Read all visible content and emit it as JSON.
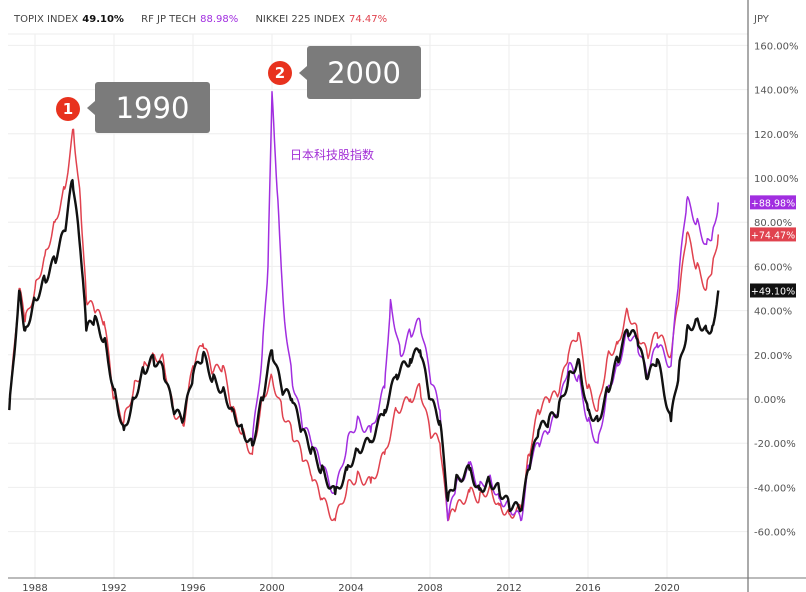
{
  "legend": [
    {
      "label": "TOPIX INDEX",
      "value": "49.10%",
      "color": "#111111"
    },
    {
      "label": "RF JP TECH",
      "value": "88.98%",
      "color": "#a12ee0"
    },
    {
      "label": "NIKKEI 225 INDEX",
      "value": "74.47%",
      "color": "#e0424e"
    }
  ],
  "annotations": {
    "marker1": "1",
    "callout1": "1990",
    "marker2": "2",
    "callout2": "2000",
    "tech_label": "日本科技股指数"
  },
  "chart_data": {
    "type": "line",
    "currency_label": "JPY",
    "x_ticks": [
      "1988",
      "1992",
      "1996",
      "2000",
      "2004",
      "2008",
      "2012",
      "2016",
      "2020"
    ],
    "y_ticks": [
      "160.00%",
      "140.00%",
      "120.00%",
      "100.00%",
      "80.00%",
      "60.00%",
      "40.00%",
      "20.00%",
      "0.00%",
      "-20.00%",
      "-40.00%",
      "-60.00%"
    ],
    "y_range": [
      -75,
      170
    ],
    "x_range": [
      1986.7,
      2022.6
    ],
    "grid": true,
    "legend_position": "top-left",
    "series": [
      {
        "name": "NIKKEI 225 INDEX",
        "color": "#e0424e",
        "last_label": "+74.47%",
        "x": [
          1986.7,
          1987.2,
          1987.5,
          1988,
          1988.5,
          1989,
          1989.5,
          1989.95,
          1990.3,
          1990.6,
          1991,
          1991.5,
          1992,
          1992.5,
          1993,
          1993.5,
          1994,
          1994.5,
          1995,
          1995.5,
          1996,
          1996.5,
          1997,
          1997.5,
          1998,
          1998.5,
          1999,
          1999.5,
          2000,
          2000.5,
          2001,
          2001.5,
          2002,
          2002.5,
          2003.2,
          2003.8,
          2004.3,
          2005,
          2005.7,
          2006.3,
          2007,
          2007.5,
          2008,
          2008.5,
          2008.9,
          2009.3,
          2010,
          2010.5,
          2011,
          2011.5,
          2012,
          2012.6,
          2013,
          2013.5,
          2014,
          2014.5,
          2015,
          2015.5,
          2016,
          2016.5,
          2017,
          2017.5,
          2018,
          2018.5,
          2019,
          2019.5,
          2020.2,
          2020.6,
          2021,
          2021.5,
          2022,
          2022.3,
          2022.6
        ],
        "y": [
          -5,
          50,
          35,
          50,
          65,
          80,
          95,
          122,
          90,
          45,
          40,
          35,
          0,
          -10,
          5,
          15,
          20,
          18,
          -5,
          -12,
          15,
          25,
          12,
          15,
          -5,
          -15,
          -25,
          0,
          10,
          -5,
          -15,
          -25,
          -35,
          -45,
          -55,
          -40,
          -35,
          -38,
          -25,
          -5,
          0,
          5,
          -15,
          -20,
          -55,
          -50,
          -42,
          -45,
          -40,
          -48,
          -52,
          -50,
          -25,
          -5,
          0,
          2,
          20,
          30,
          5,
          -5,
          20,
          25,
          40,
          30,
          20,
          30,
          20,
          45,
          75,
          60,
          50,
          60,
          74.47
        ]
      },
      {
        "name": "RF JP TECH",
        "color": "#a12ee0",
        "last_label": "+88.98%",
        "x": [
          1999,
          1999.5,
          1999.8,
          2000,
          2000.3,
          2000.6,
          2001,
          2001.5,
          2002,
          2002.5,
          2003.2,
          2003.8,
          2004.3,
          2005,
          2005.7,
          2006,
          2006.5,
          2007,
          2007.5,
          2008,
          2008.5,
          2008.9,
          2009.3,
          2010,
          2010.5,
          2011,
          2011.5,
          2012,
          2012.6,
          2013,
          2013.5,
          2014,
          2014.5,
          2015,
          2015.5,
          2016,
          2016.5,
          2017,
          2017.5,
          2018,
          2018.5,
          2019,
          2019.5,
          2020.2,
          2020.6,
          2021,
          2021.5,
          2022,
          2022.3,
          2022.6
        ],
        "y": [
          -20,
          20,
          60,
          139,
          90,
          40,
          10,
          -10,
          -20,
          -30,
          -43,
          -20,
          -10,
          -15,
          5,
          45,
          20,
          30,
          35,
          10,
          -5,
          -55,
          -40,
          -30,
          -40,
          -35,
          -45,
          -48,
          -55,
          -30,
          -20,
          -15,
          -5,
          15,
          10,
          -10,
          -20,
          5,
          15,
          30,
          25,
          10,
          25,
          15,
          55,
          90,
          80,
          70,
          75,
          88.98
        ]
      },
      {
        "name": "TOPIX INDEX",
        "color": "#111111",
        "last_label": "+49.10%",
        "x": [
          1986.7,
          1987.2,
          1987.5,
          1988,
          1988.5,
          1989,
          1989.5,
          1989.9,
          1990.3,
          1990.6,
          1991,
          1991.5,
          1992,
          1992.5,
          1993,
          1993.5,
          1994,
          1994.5,
          1995,
          1995.5,
          1996,
          1996.5,
          1997,
          1997.5,
          1998,
          1998.5,
          1999,
          1999.5,
          2000,
          2000.5,
          2001,
          2001.5,
          2002,
          2002.5,
          2003.2,
          2003.8,
          2004.3,
          2005,
          2005.7,
          2006.3,
          2007,
          2007.5,
          2008,
          2008.5,
          2008.9,
          2009.3,
          2010,
          2010.5,
          2011,
          2011.5,
          2012,
          2012.6,
          2013,
          2013.5,
          2014,
          2014.5,
          2015,
          2015.5,
          2016,
          2016.5,
          2017,
          2017.5,
          2018,
          2018.5,
          2019,
          2019.5,
          2020.2,
          2020.6,
          2021,
          2021.5,
          2022,
          2022.3,
          2022.6
        ],
        "y": [
          -5,
          49,
          31,
          45,
          54,
          63,
          76,
          99,
          67,
          31,
          36,
          27,
          4,
          -14,
          0,
          13,
          18,
          13,
          -5,
          -10,
          11,
          20,
          9,
          4,
          -5,
          -14,
          -21,
          0,
          22,
          4,
          0,
          -14,
          -23,
          -32,
          -43,
          -32,
          -23,
          -19,
          -5,
          11,
          18,
          22,
          0,
          -10,
          -46,
          -37,
          -32,
          -41,
          -37,
          -41,
          -48,
          -50,
          -32,
          -14,
          -10,
          -5,
          9,
          18,
          -5,
          -10,
          4,
          18,
          31,
          27,
          9,
          18,
          -10,
          13,
          31,
          36,
          31,
          33,
          49.1
        ]
      }
    ]
  }
}
